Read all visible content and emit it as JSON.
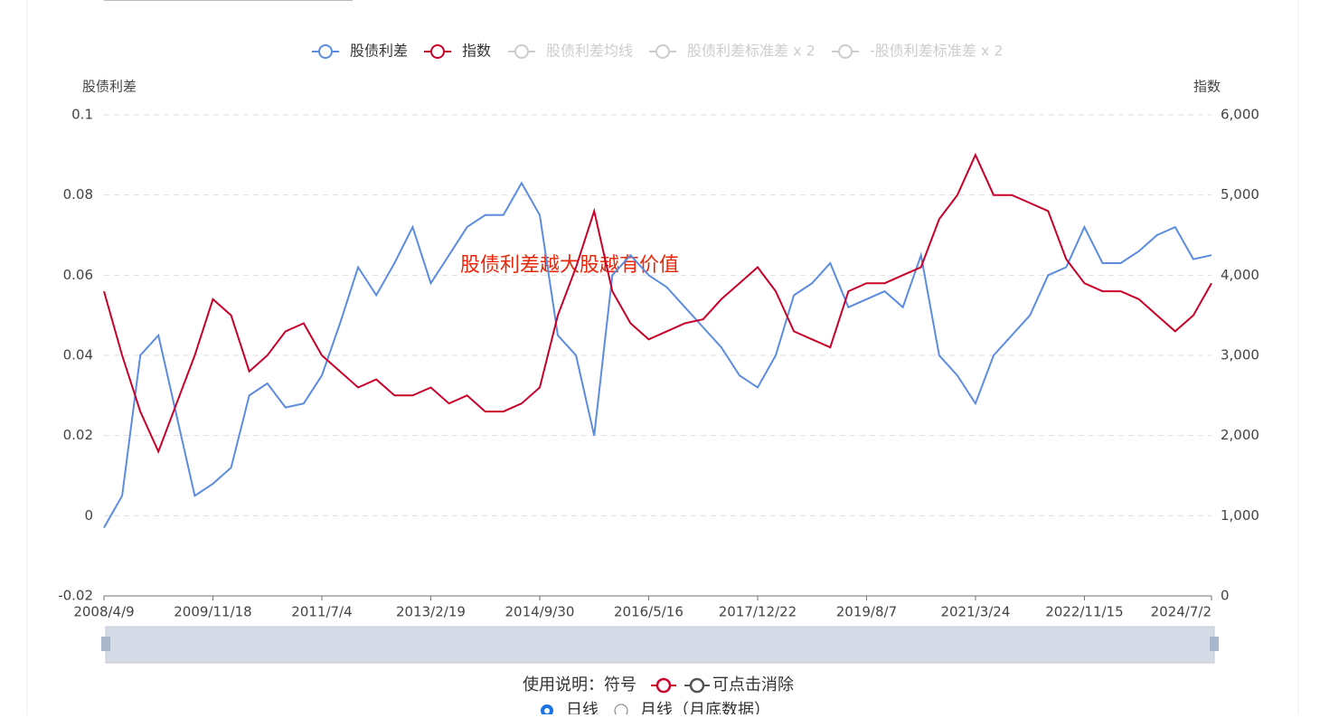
{
  "chart_data": {
    "type": "line",
    "annotation": "股债利差越大股越有价值",
    "y_axis_label": "股债利差",
    "y2_axis_label": "指数",
    "categories": [
      "2008/4/9",
      null,
      null,
      null,
      null,
      null,
      "2009/11/18",
      null,
      null,
      null,
      null,
      null,
      "2011/7/4",
      null,
      null,
      null,
      null,
      null,
      "2013/2/19",
      null,
      null,
      null,
      null,
      null,
      "2014/9/30",
      null,
      null,
      null,
      null,
      null,
      "2016/5/16",
      null,
      null,
      null,
      null,
      null,
      "2017/12/22",
      null,
      null,
      null,
      null,
      null,
      "2019/8/7",
      null,
      null,
      null,
      null,
      null,
      "2021/3/24",
      null,
      null,
      null,
      null,
      null,
      "2022/11/15",
      null,
      null,
      null,
      null,
      null,
      null,
      "2024/7/2"
    ],
    "series": [
      {
        "name": "股债利差",
        "color": "#5b8ce0",
        "axis": "y",
        "values": [
          -0.003,
          0.005,
          0.04,
          0.045,
          0.025,
          0.005,
          0.008,
          0.012,
          0.03,
          0.033,
          0.027,
          0.028,
          0.035,
          0.048,
          0.062,
          0.055,
          0.063,
          0.072,
          0.058,
          0.065,
          0.072,
          0.075,
          0.075,
          0.083,
          0.075,
          0.045,
          0.04,
          0.02,
          0.06,
          0.065,
          0.06,
          0.057,
          0.052,
          0.047,
          0.042,
          0.035,
          0.032,
          0.04,
          0.055,
          0.058,
          0.063,
          0.052,
          0.054,
          0.056,
          0.052,
          0.065,
          0.04,
          0.035,
          0.028,
          0.04,
          0.045,
          0.05,
          0.06,
          0.062,
          0.072,
          0.063,
          0.063,
          0.066,
          0.07,
          0.072,
          0.064,
          0.065
        ]
      },
      {
        "name": "指数",
        "color": "#c8002a",
        "axis": "y2",
        "values": [
          3800,
          3000,
          2300,
          1800,
          2400,
          3000,
          3700,
          3500,
          2800,
          3000,
          3300,
          3400,
          3000,
          2800,
          2600,
          2700,
          2500,
          2500,
          2600,
          2400,
          2500,
          2300,
          2300,
          2400,
          2600,
          3500,
          4100,
          4800,
          3800,
          3400,
          3200,
          3300,
          3400,
          3450,
          3700,
          3900,
          4100,
          3800,
          3300,
          3200,
          3100,
          3800,
          3900,
          3900,
          4000,
          4100,
          4700,
          5000,
          5500,
          5000,
          5000,
          4900,
          4800,
          4200,
          3900,
          3800,
          3800,
          3700,
          3500,
          3300,
          3500,
          3900
        ]
      }
    ],
    "hidden_series": [
      {
        "name": "股债利差均线"
      },
      {
        "name": "股债利差标准差 x 2"
      },
      {
        "name": "-股债利差标准差 x 2"
      }
    ],
    "hidden_color": "#cccccc",
    "ylim": [
      -0.02,
      0.1
    ],
    "yticks": [
      -0.02,
      0,
      0.02,
      0.04,
      0.06,
      0.08,
      0.1
    ],
    "y2lim": [
      0,
      6000
    ],
    "y2ticks": [
      0,
      {
        "value": 1000,
        "label": "1,000"
      },
      {
        "value": 2000,
        "label": "2,000"
      },
      {
        "value": 3000,
        "label": "3,000"
      },
      {
        "value": 4000,
        "label": "4,000"
      },
      {
        "value": 5000,
        "label": "5,000"
      },
      {
        "value": 6000,
        "label": "6,000"
      }
    ],
    "grid": true
  },
  "footer": {
    "usage_prefix": "使用说明：符号",
    "usage_suffix": "可点击消除",
    "options": [
      "日线",
      "月线（月底数据）"
    ],
    "selected": 0
  }
}
